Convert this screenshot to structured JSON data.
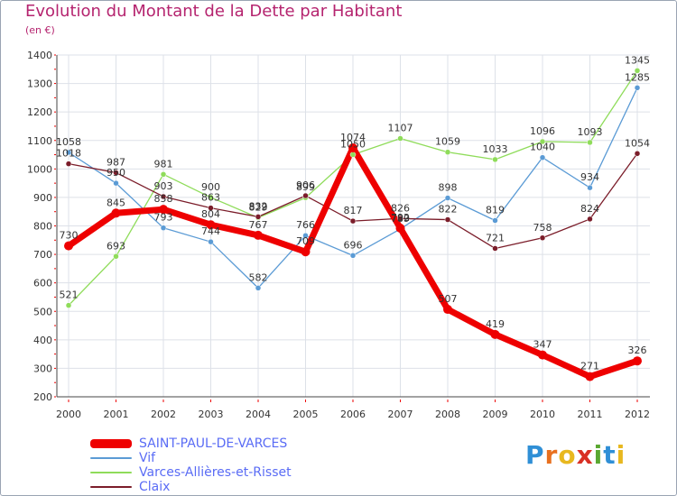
{
  "header": {
    "title": "Evolution du Montant de la Dette par Habitant",
    "subtitle": "(en €)"
  },
  "brand": {
    "text": "Proxiti",
    "letter_colors": [
      "#2f8fd6",
      "#e8701f",
      "#e8b81f",
      "#d93025",
      "#5aa832",
      "#2f8fd6",
      "#e8b81f"
    ]
  },
  "chart_data": {
    "type": "line",
    "title": "Evolution du Montant de la Dette par Habitant",
    "subtitle": "(en €)",
    "xlabel": "",
    "ylabel": "",
    "categories": [
      "2000",
      "2001",
      "2002",
      "2003",
      "2004",
      "2005",
      "2006",
      "2007",
      "2008",
      "2009",
      "2010",
      "2011",
      "2012"
    ],
    "ylim": [
      200,
      1400
    ],
    "yticks": [
      200,
      300,
      400,
      500,
      600,
      700,
      800,
      900,
      1000,
      1100,
      1200,
      1300,
      1400
    ],
    "grid": true,
    "legend_position": "bottom-left",
    "series": [
      {
        "name": "SAINT-PAUL-DE-VARCES",
        "color": "#ee0000",
        "values": [
          730,
          845,
          858,
          804,
          767,
          709,
          1074,
          792,
          507,
          419,
          347,
          271,
          326
        ]
      },
      {
        "name": "Vif",
        "color": "#5b9bd5",
        "values": [
          1058,
          950,
          793,
          744,
          582,
          766,
          696,
          789,
          898,
          819,
          1040,
          934,
          1285
        ]
      },
      {
        "name": "Varces-Allières-et-Risset",
        "color": "#8fdc5a",
        "values": [
          521,
          693,
          981,
          900,
          829,
          899,
          1050,
          1107,
          1059,
          1033,
          1096,
          1093,
          1345
        ]
      },
      {
        "name": "Claix",
        "color": "#7b1d2a",
        "values": [
          1018,
          987,
          903,
          863,
          832,
          906,
          817,
          826,
          822,
          721,
          758,
          824,
          1054
        ]
      }
    ]
  }
}
